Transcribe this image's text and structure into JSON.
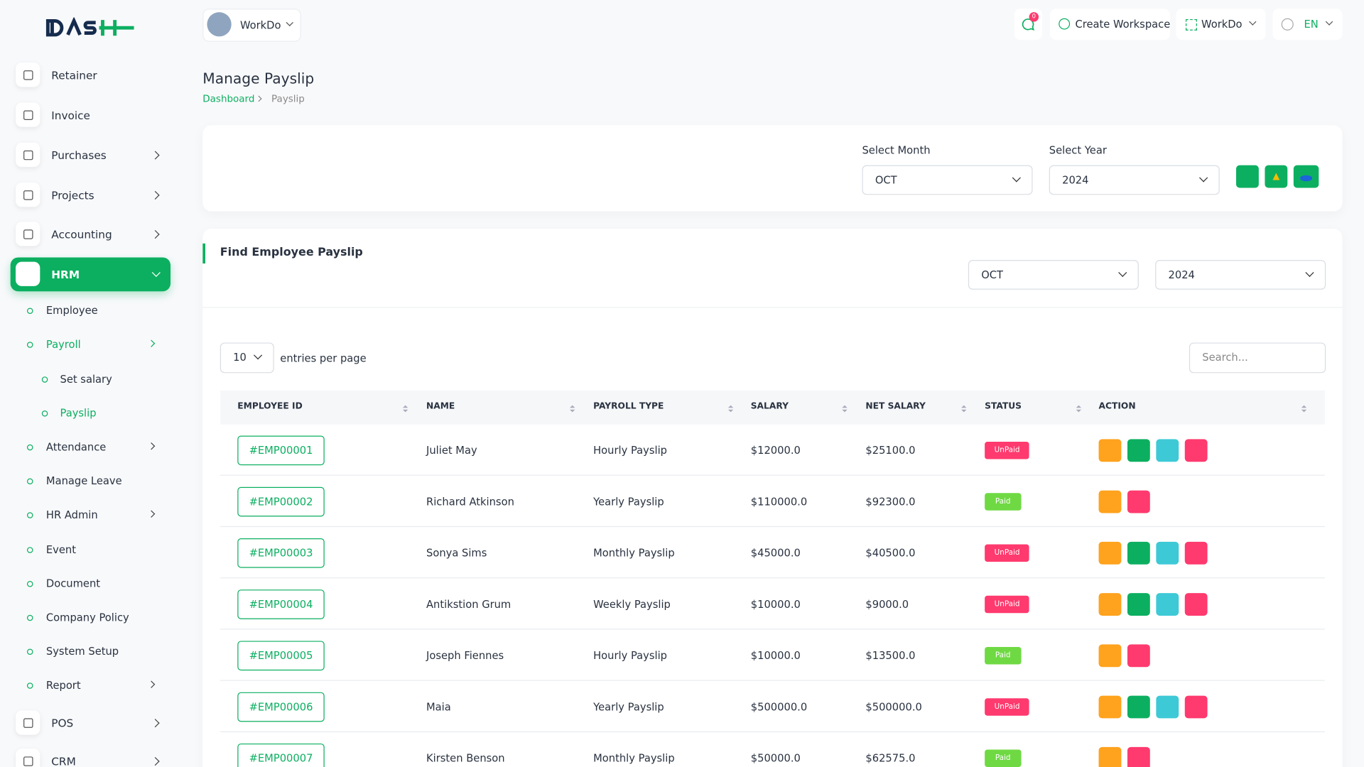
{
  "header": {
    "workspace": "WorkDo",
    "notifications": "0",
    "create_workspace": "Create Workspace",
    "user": "WorkDo",
    "language": "EN"
  },
  "sidebar": {
    "items": [
      "Retainer",
      "Invoice",
      "Purchases",
      "Projects",
      "Accounting",
      "HRM"
    ],
    "hrm_items": [
      "Employee",
      "Payroll",
      "Attendance",
      "Manage Leave",
      "HR Admin",
      "Event",
      "Document",
      "Company Policy",
      "System Setup",
      "Report"
    ],
    "payroll_items": [
      "Set salary",
      "Payslip"
    ],
    "bottom_items": [
      "POS",
      "CRM"
    ]
  },
  "page": {
    "title": "Manage Payslip",
    "breadcrumb": [
      "Dashboard",
      "Payslip"
    ]
  },
  "filter": {
    "month_label": "Select Month",
    "month": "OCT",
    "year_label": "Select Year",
    "year": "2024"
  },
  "card": {
    "title": "Find Employee Payslip",
    "month": "OCT",
    "year": "2024",
    "entries": "10",
    "entries_label": "entries per page",
    "search_placeholder": "Search..."
  },
  "table": {
    "columns": [
      "EMPLOYEE ID",
      "NAME",
      "PAYROLL TYPE",
      "SALARY",
      "NET SALARY",
      "STATUS",
      "ACTION"
    ],
    "rows": [
      [
        "#EMP00001",
        "Juliet May",
        "Hourly Payslip",
        "$12000.0",
        "$25100.0",
        "UnPaid"
      ],
      [
        "#EMP00002",
        "Richard Atkinson",
        "Yearly Payslip",
        "$110000.0",
        "$92300.0",
        "Paid"
      ],
      [
        "#EMP00003",
        "Sonya Sims",
        "Monthly Payslip",
        "$45000.0",
        "$40500.0",
        "UnPaid"
      ],
      [
        "#EMP00004",
        "Antikstion Grum",
        "Weekly Payslip",
        "$10000.0",
        "$9000.0",
        "UnPaid"
      ],
      [
        "#EMP00005",
        "Joseph Fiennes",
        "Hourly Payslip",
        "$10000.0",
        "$13500.0",
        "Paid"
      ],
      [
        "#EMP00006",
        "Maia",
        "Yearly Payslip",
        "$500000.0",
        "$500000.0",
        "UnPaid"
      ],
      [
        "#EMP00007",
        "Kirsten Benson",
        "Monthly Payslip",
        "$50000.0",
        "$62575.0",
        "Paid"
      ]
    ]
  }
}
